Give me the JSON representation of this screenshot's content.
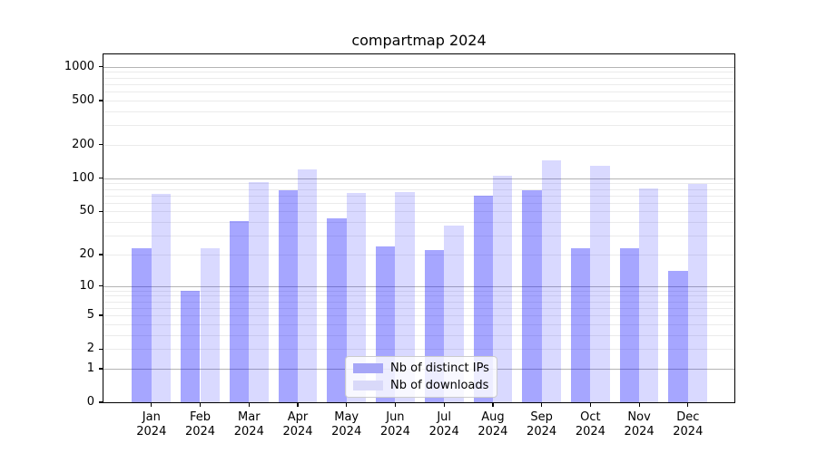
{
  "chart_data": {
    "type": "bar",
    "title": "compartmap 2024",
    "xlabel": "",
    "ylabel": "",
    "categories": [
      "Jan",
      "Feb",
      "Mar",
      "Apr",
      "May",
      "Jun",
      "Jul",
      "Aug",
      "Sep",
      "Oct",
      "Nov",
      "Dec"
    ],
    "x_tick_second_line": "2024",
    "series": [
      {
        "name": "Nb of distinct IPs",
        "color": "rgba(0,0,255,0.35)",
        "legend_color": "#a6a6f7",
        "values": [
          23,
          9,
          41,
          78,
          43,
          24,
          22,
          70,
          78,
          23,
          23,
          14
        ]
      },
      {
        "name": "Nb of downloads",
        "color": "rgba(0,0,255,0.15)",
        "legend_color": "#d9d9f9",
        "values": [
          72,
          23,
          92,
          120,
          73,
          75,
          37,
          105,
          145,
          130,
          81,
          89
        ]
      }
    ],
    "y_scale": "log1p",
    "y_ticks": [
      1000,
      500,
      200,
      100,
      50,
      20,
      10,
      5,
      2,
      1,
      0
    ],
    "y_axis_range": [
      0,
      1294
    ],
    "grid_major_values": [
      1,
      10,
      100,
      1000
    ],
    "grid_minor": true,
    "legend_position": "lower center",
    "background_color": "#ffffff",
    "grid_major_color": "#b4b4b4",
    "grid_minor_color": "#ebebeb"
  }
}
